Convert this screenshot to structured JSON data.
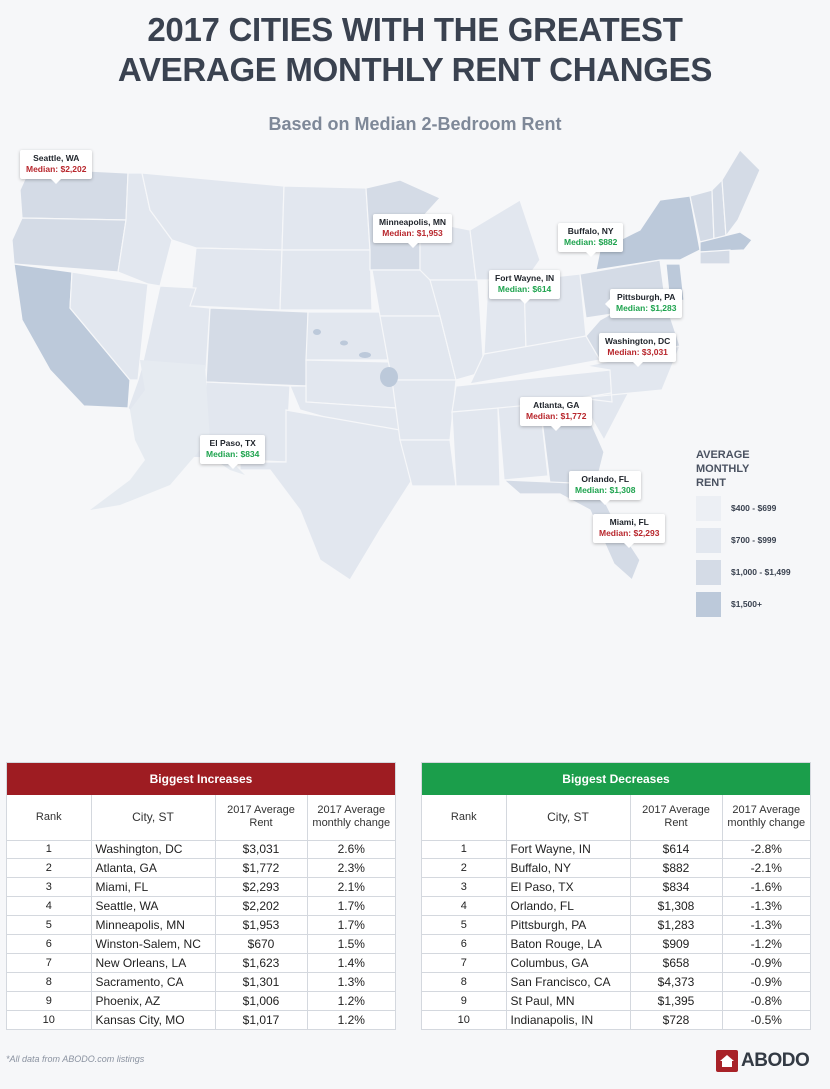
{
  "header": {
    "title_line1": "2017 CITIES WITH THE GREATEST",
    "title_line2": "AVERAGE MONTHLY RENT CHANGES",
    "subtitle": "Based on Median 2-Bedroom Rent"
  },
  "map": {
    "callouts": [
      {
        "city": "Seattle, WA",
        "median": "Median: $2,202",
        "trend": "up"
      },
      {
        "city": "Minneapolis, MN",
        "median": "Median: $1,953",
        "trend": "up"
      },
      {
        "city": "Buffalo, NY",
        "median": "Median: $882",
        "trend": "down"
      },
      {
        "city": "Fort Wayne, IN",
        "median": "Median: $614",
        "trend": "down"
      },
      {
        "city": "Pittsburgh, PA",
        "median": "Median: $1,283",
        "trend": "down"
      },
      {
        "city": "Washington, DC",
        "median": "Median: $3,031",
        "trend": "up"
      },
      {
        "city": "Atlanta, GA",
        "median": "Median: $1,772",
        "trend": "up"
      },
      {
        "city": "El Paso, TX",
        "median": "Median: $834",
        "trend": "down"
      },
      {
        "city": "Orlando, FL",
        "median": "Median: $1,308",
        "trend": "down"
      },
      {
        "city": "Miami, FL",
        "median": "Median: $2,293",
        "trend": "up"
      }
    ],
    "colors": {
      "up": "#b8262c",
      "down": "#1ea34e"
    }
  },
  "legend": {
    "title_line1": "AVERAGE",
    "title_line2": "MONTHLY",
    "title_line3": "RENT",
    "items": [
      {
        "label": "$400 - $699",
        "color": "#eceff4"
      },
      {
        "label": "$700 - $999",
        "color": "#e2e7ef"
      },
      {
        "label": "$1,000 - $1,499",
        "color": "#d4dbe6"
      },
      {
        "label": "$1,500+",
        "color": "#bcc9da"
      }
    ]
  },
  "tables": {
    "increases": {
      "title": "Biggest Increases",
      "color": "#9e1c22",
      "columns": [
        "Rank",
        "City, ST",
        "2017 Average Rent",
        "2017 Average monthly change"
      ],
      "rows": [
        {
          "rank": "1",
          "city": "Washington, DC",
          "rent": "$3,031",
          "change": "2.6%"
        },
        {
          "rank": "2",
          "city": "Atlanta, GA",
          "rent": "$1,772",
          "change": "2.3%"
        },
        {
          "rank": "3",
          "city": "Miami, FL",
          "rent": "$2,293",
          "change": "2.1%"
        },
        {
          "rank": "4",
          "city": "Seattle, WA",
          "rent": "$2,202",
          "change": "1.7%"
        },
        {
          "rank": "5",
          "city": "Minneapolis, MN",
          "rent": "$1,953",
          "change": "1.7%"
        },
        {
          "rank": "6",
          "city": "Winston-Salem, NC",
          "rent": "$670",
          "change": "1.5%"
        },
        {
          "rank": "7",
          "city": "New Orleans, LA",
          "rent": "$1,623",
          "change": "1.4%"
        },
        {
          "rank": "8",
          "city": "Sacramento, CA",
          "rent": "$1,301",
          "change": "1.3%"
        },
        {
          "rank": "9",
          "city": "Phoenix, AZ",
          "rent": "$1,006",
          "change": "1.2%"
        },
        {
          "rank": "10",
          "city": "Kansas City, MO",
          "rent": "$1,017",
          "change": "1.2%"
        }
      ]
    },
    "decreases": {
      "title": "Biggest Decreases",
      "color": "#1b9e4b",
      "columns": [
        "Rank",
        "City, ST",
        "2017 Average Rent",
        "2017 Average monthly change"
      ],
      "rows": [
        {
          "rank": "1",
          "city": "Fort Wayne, IN",
          "rent": "$614",
          "change": "-2.8%"
        },
        {
          "rank": "2",
          "city": "Buffalo, NY",
          "rent": "$882",
          "change": "-2.1%"
        },
        {
          "rank": "3",
          "city": "El Paso, TX",
          "rent": "$834",
          "change": "-1.6%"
        },
        {
          "rank": "4",
          "city": "Orlando, FL",
          "rent": "$1,308",
          "change": "-1.3%"
        },
        {
          "rank": "5",
          "city": "Pittsburgh, PA",
          "rent": "$1,283",
          "change": "-1.3%"
        },
        {
          "rank": "6",
          "city": "Baton Rouge, LA",
          "rent": "$909",
          "change": "-1.2%"
        },
        {
          "rank": "7",
          "city": "Columbus, GA",
          "rent": "$658",
          "change": "-0.9%"
        },
        {
          "rank": "8",
          "city": "San Francisco, CA",
          "rent": "$4,373",
          "change": "-0.9%"
        },
        {
          "rank": "9",
          "city": "St Paul, MN",
          "rent": "$1,395",
          "change": "-0.8%"
        },
        {
          "rank": "10",
          "city": "Indianapolis, IN",
          "rent": "$728",
          "change": "-0.5%"
        }
      ]
    }
  },
  "footer": {
    "footnote": "*All data from ABODO.com listings",
    "brand": "ABODO",
    "brand_color": "#a82228"
  },
  "chart_data": [
    {
      "type": "table",
      "title": "Biggest Increases",
      "columns": [
        "Rank",
        "City, ST",
        "2017 Average Rent",
        "2017 Average monthly change"
      ],
      "categories": [
        "Washington, DC",
        "Atlanta, GA",
        "Miami, FL",
        "Seattle, WA",
        "Minneapolis, MN",
        "Winston-Salem, NC",
        "New Orleans, LA",
        "Sacramento, CA",
        "Phoenix, AZ",
        "Kansas City, MO"
      ],
      "series": [
        {
          "name": "2017 Average Rent",
          "values": [
            3031,
            1772,
            2293,
            2202,
            1953,
            670,
            1623,
            1301,
            1006,
            1017
          ]
        },
        {
          "name": "2017 Average monthly change (%)",
          "values": [
            2.6,
            2.3,
            2.1,
            1.7,
            1.7,
            1.5,
            1.4,
            1.3,
            1.2,
            1.2
          ]
        }
      ]
    },
    {
      "type": "table",
      "title": "Biggest Decreases",
      "columns": [
        "Rank",
        "City, ST",
        "2017 Average Rent",
        "2017 Average monthly change"
      ],
      "categories": [
        "Fort Wayne, IN",
        "Buffalo, NY",
        "El Paso, TX",
        "Orlando, FL",
        "Pittsburgh, PA",
        "Baton Rouge, LA",
        "Columbus, GA",
        "San Francisco, CA",
        "St Paul, MN",
        "Indianapolis, IN"
      ],
      "series": [
        {
          "name": "2017 Average Rent",
          "values": [
            614,
            882,
            834,
            1308,
            1283,
            909,
            658,
            4373,
            1395,
            728
          ]
        },
        {
          "name": "2017 Average monthly change (%)",
          "values": [
            -2.8,
            -2.1,
            -1.6,
            -1.3,
            -1.3,
            -1.2,
            -0.9,
            -0.9,
            -0.8,
            -0.5
          ]
        }
      ]
    },
    {
      "type": "heatmap",
      "title": "Average Monthly Rent (choropleth, median 2-bedroom)",
      "legend": [
        "$400 - $699",
        "$700 - $999",
        "$1,000 - $1,499",
        "$1,500+"
      ],
      "legend_position": "right",
      "annotations": [
        {
          "city": "Seattle, WA",
          "median": 2202
        },
        {
          "city": "Minneapolis, MN",
          "median": 1953
        },
        {
          "city": "Buffalo, NY",
          "median": 882
        },
        {
          "city": "Fort Wayne, IN",
          "median": 614
        },
        {
          "city": "Pittsburgh, PA",
          "median": 1283
        },
        {
          "city": "Washington, DC",
          "median": 3031
        },
        {
          "city": "Atlanta, GA",
          "median": 1772
        },
        {
          "city": "El Paso, TX",
          "median": 834
        },
        {
          "city": "Orlando, FL",
          "median": 1308
        },
        {
          "city": "Miami, FL",
          "median": 2293
        }
      ]
    }
  ]
}
